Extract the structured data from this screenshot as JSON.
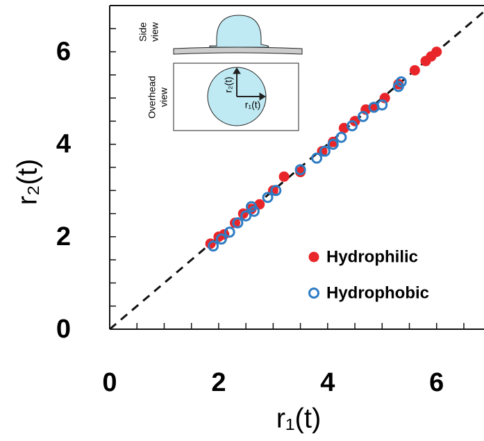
{
  "chart_data": {
    "type": "scatter",
    "x_label": "r₁(t)",
    "y_label": "r₂(t)",
    "xlim": [
      0,
      6.87
    ],
    "ylim": [
      0,
      7
    ],
    "xticks": [
      0,
      2,
      4,
      6
    ],
    "yticks": [
      0,
      2,
      4,
      6
    ],
    "xminorticks": [
      0.5,
      1,
      1.5,
      2.5,
      3,
      3.5,
      4.5,
      5,
      5.5,
      6.5
    ],
    "yminorticks": [
      0.5,
      1,
      1.5,
      2.5,
      3,
      3.5,
      4.5,
      5,
      5.5,
      6.5
    ],
    "identity_line": true,
    "legend": "lower right",
    "series": [
      {
        "name": "Hydrophilic",
        "color": "#e8262a",
        "marker": "filled",
        "x": [
          1.85,
          2.0,
          2.1,
          2.3,
          2.45,
          2.6,
          2.75,
          3.0,
          3.2,
          3.5,
          3.9,
          4.1,
          4.3,
          4.5,
          4.7,
          4.85,
          5.05,
          5.3,
          5.6,
          5.8,
          5.9,
          6.0
        ],
        "values": [
          1.85,
          2.0,
          2.05,
          2.3,
          2.5,
          2.6,
          2.7,
          3.0,
          3.3,
          3.4,
          3.85,
          4.05,
          4.35,
          4.5,
          4.75,
          4.8,
          5.0,
          5.3,
          5.6,
          5.8,
          5.9,
          6.0
        ]
      },
      {
        "name": "Hydrophobic",
        "color": "#2e7cc4",
        "marker": "open",
        "x": [
          1.9,
          2.05,
          2.2,
          2.35,
          2.5,
          2.6,
          2.65,
          2.9,
          3.05,
          3.5,
          3.8,
          3.95,
          4.1,
          4.25,
          4.45,
          4.65,
          4.85,
          5.0,
          5.3,
          5.35
        ],
        "values": [
          1.8,
          1.95,
          2.1,
          2.3,
          2.45,
          2.65,
          2.55,
          2.85,
          3.0,
          3.45,
          3.7,
          3.85,
          4.0,
          4.15,
          4.4,
          4.6,
          4.8,
          4.85,
          5.25,
          5.35
        ]
      }
    ],
    "inset": {
      "side_a": "Side",
      "side_b": "view",
      "over_a": "Overhead",
      "over_b": "view",
      "r2": "r₂(t)",
      "r1": "r₁(t)"
    }
  }
}
